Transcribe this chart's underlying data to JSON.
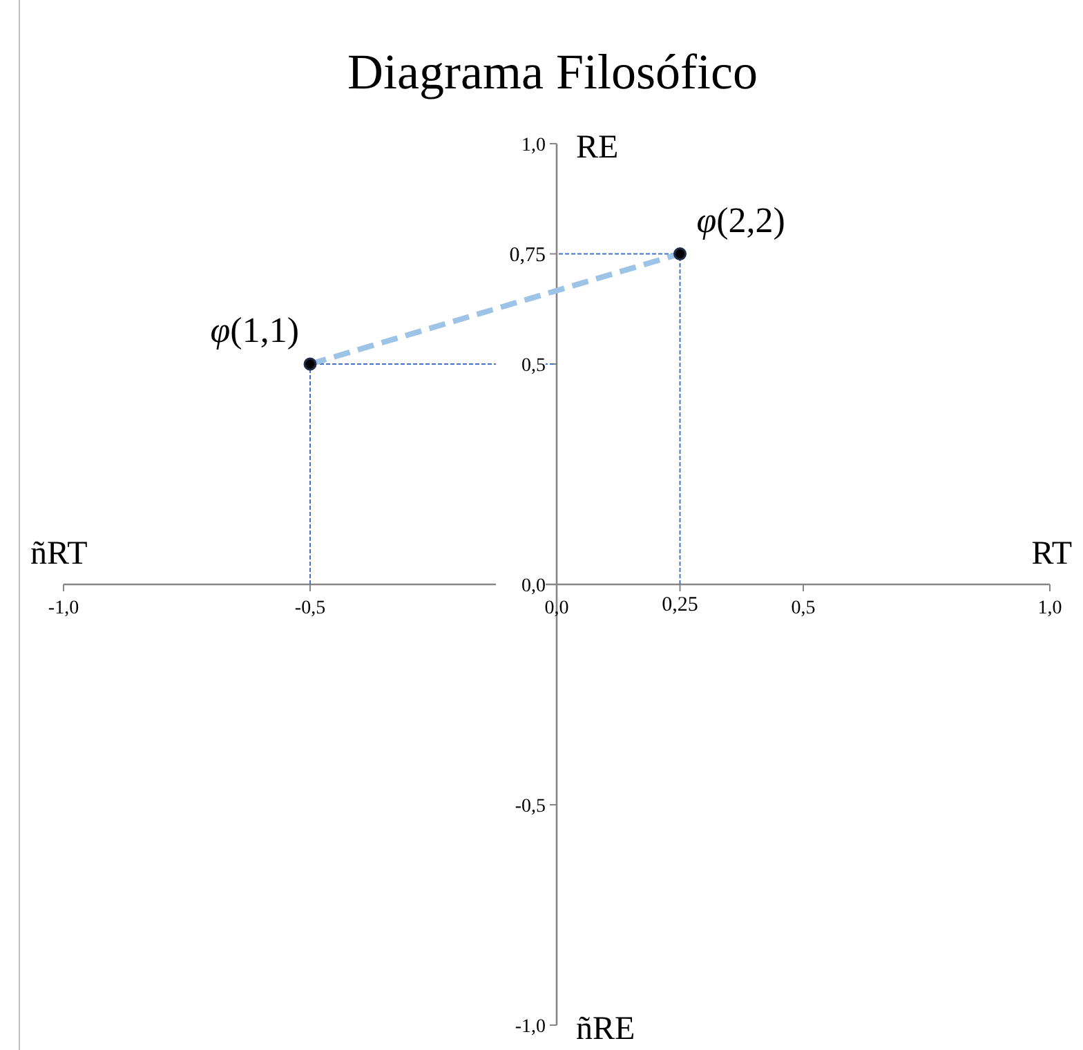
{
  "chart_data": {
    "type": "scatter",
    "title": "Diagrama Filosófico",
    "xlabel": "RT",
    "ylabel": "RE",
    "xlim": [
      -1,
      1
    ],
    "ylim": [
      -1,
      1
    ],
    "xticks": [
      {
        "value": -1,
        "label": "-1,0"
      },
      {
        "value": -0.5,
        "label": "-0,5"
      },
      {
        "value": 0,
        "label": "0,0"
      },
      {
        "value": 0.25,
        "label": "0,25"
      },
      {
        "value": 0.5,
        "label": "0,5"
      },
      {
        "value": 1,
        "label": "1,0"
      }
    ],
    "yticks": [
      {
        "value": -1,
        "label": "-1,0"
      },
      {
        "value": -0.5,
        "label": "-0,5"
      },
      {
        "value": 0,
        "label": "0,0"
      },
      {
        "value": 0.5,
        "label": "0,5"
      },
      {
        "value": 0.75,
        "label": "0,75"
      },
      {
        "value": 1,
        "label": "1,0"
      }
    ],
    "grid": false,
    "marker": "circle",
    "series": [
      {
        "type": "line",
        "color": "#4472c4",
        "line_style": "dashed",
        "marker": "none",
        "x": [
          -0.5,
          -0.5,
          0
        ],
        "values": [
          0,
          0.5,
          0.5
        ]
      },
      {
        "type": "line",
        "color": "#4472c4",
        "line_style": "dashed",
        "marker": "none",
        "x": [
          0.25,
          0.25,
          0
        ],
        "values": [
          0,
          0.75,
          0.75
        ]
      },
      {
        "type": "line",
        "color": "#9dc3e6",
        "line_style": "dashed",
        "marker": "none",
        "x": [
          -0.5,
          0.25
        ],
        "values": [
          0.5,
          0.75
        ]
      },
      {
        "color": "#000000",
        "x": [
          -0.5,
          0.25
        ],
        "values": [
          0.5,
          0.75
        ]
      }
    ],
    "annotations": [
      {
        "text": "φ(1,1)",
        "x": -0.5,
        "y": 0.5
      },
      {
        "text": "φ(2,2)",
        "x": 0.25,
        "y": 0.75
      },
      "ñRT",
      "ñRE"
    ]
  }
}
